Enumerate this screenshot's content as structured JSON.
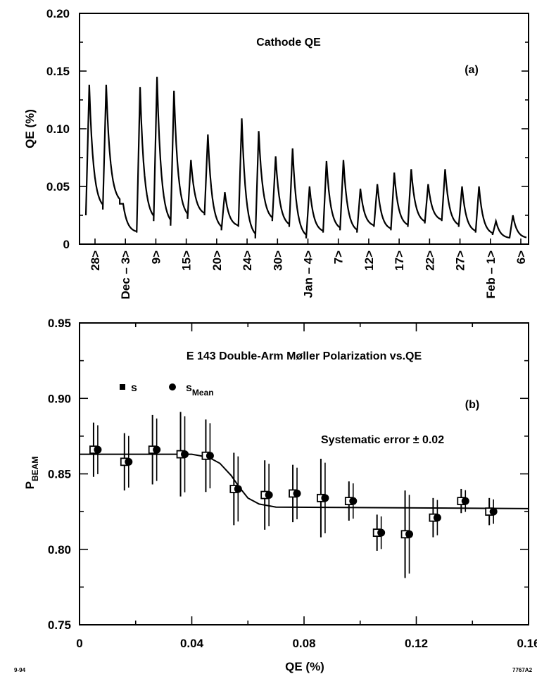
{
  "chart_data": [
    {
      "type": "line",
      "title": "Cathode QE",
      "panel_label": "(a)",
      "ylabel": "QE  (%)",
      "ylim": [
        0,
        0.2
      ],
      "yticks": [
        0,
        0.05,
        0.1,
        0.15,
        0.2
      ],
      "ytick_labels": [
        "0",
        "0.05",
        "0.10",
        "0.15",
        "0.20"
      ],
      "date_labels": [
        "28>",
        "Dec – 3>",
        "9>",
        "15>",
        "20>",
        "24>",
        "30>",
        "Jan – 4>",
        "7>",
        "12>",
        "17>",
        "22>",
        "27>",
        "Feb – 1>",
        "6>"
      ],
      "series": [
        {
          "values_by_cycle": [
            {
              "start": 0.025,
              "peak": 0.138,
              "end": 0.03
            },
            {
              "start": 0.03,
              "peak": 0.138,
              "end": 0.035
            },
            {
              "start": 0.035,
              "peak": 0.035,
              "end": 0.01
            },
            {
              "start": 0.01,
              "peak": 0.136,
              "end": 0.02
            },
            {
              "start": 0.02,
              "peak": 0.145,
              "end": 0.016
            },
            {
              "start": 0.016,
              "peak": 0.133,
              "end": 0.022
            },
            {
              "start": 0.022,
              "peak": 0.073,
              "end": 0.025
            },
            {
              "start": 0.025,
              "peak": 0.095,
              "end": 0.012
            },
            {
              "start": 0.012,
              "peak": 0.045,
              "end": 0.015
            },
            {
              "start": 0.015,
              "peak": 0.109,
              "end": 0.005
            },
            {
              "start": 0.005,
              "peak": 0.098,
              "end": 0.02
            },
            {
              "start": 0.02,
              "peak": 0.076,
              "end": 0.015
            },
            {
              "start": 0.015,
              "peak": 0.083,
              "end": 0.005
            },
            {
              "start": 0.005,
              "peak": 0.05,
              "end": 0.01
            },
            {
              "start": 0.01,
              "peak": 0.072,
              "end": 0.012
            },
            {
              "start": 0.012,
              "peak": 0.073,
              "end": 0.01
            },
            {
              "start": 0.01,
              "peak": 0.048,
              "end": 0.015
            },
            {
              "start": 0.015,
              "peak": 0.052,
              "end": 0.012
            },
            {
              "start": 0.012,
              "peak": 0.062,
              "end": 0.015
            },
            {
              "start": 0.015,
              "peak": 0.065,
              "end": 0.018
            },
            {
              "start": 0.018,
              "peak": 0.052,
              "end": 0.02
            },
            {
              "start": 0.02,
              "peak": 0.065,
              "end": 0.015
            },
            {
              "start": 0.015,
              "peak": 0.05,
              "end": 0.01
            },
            {
              "start": 0.01,
              "peak": 0.05,
              "end": 0.008
            },
            {
              "start": 0.008,
              "peak": 0.02,
              "end": 0.005
            },
            {
              "start": 0.005,
              "peak": 0.025,
              "end": 0.005
            }
          ]
        }
      ]
    },
    {
      "type": "scatter",
      "title": "E 143 Double-Arm Møller Polarization vs.QE",
      "panel_label": "(b)",
      "annotation": "Systematic error ± 0.02",
      "xlabel": "QE  (%)",
      "ylabel_main": "P",
      "ylabel_sub": "BEAM",
      "xlim": [
        0,
        0.16
      ],
      "ylim": [
        0.75,
        0.95
      ],
      "xticks": [
        0,
        0.04,
        0.08,
        0.12,
        0.16
      ],
      "xtick_labels": [
        "0",
        "0.04",
        "0.08",
        "0.12",
        "0.16"
      ],
      "yticks": [
        0.75,
        0.8,
        0.85,
        0.9,
        0.95
      ],
      "ytick_labels": [
        "0.75",
        "0.80",
        "0.85",
        "0.90",
        "0.95"
      ],
      "legend": [
        {
          "name_main": "s",
          "name_sub": "",
          "marker": "square"
        },
        {
          "name_main": "s",
          "name_sub": "Mean",
          "marker": "circle"
        }
      ],
      "series": [
        {
          "name": "s",
          "points": [
            {
              "x": 0.005,
              "y": 0.866,
              "err": 0.018
            },
            {
              "x": 0.016,
              "y": 0.858,
              "err": 0.019
            },
            {
              "x": 0.026,
              "y": 0.866,
              "err": 0.023
            },
            {
              "x": 0.036,
              "y": 0.863,
              "err": 0.028
            },
            {
              "x": 0.045,
              "y": 0.862,
              "err": 0.024
            },
            {
              "x": 0.055,
              "y": 0.84,
              "err": 0.024
            },
            {
              "x": 0.066,
              "y": 0.836,
              "err": 0.023
            },
            {
              "x": 0.076,
              "y": 0.837,
              "err": 0.019
            },
            {
              "x": 0.086,
              "y": 0.834,
              "err": 0.026
            },
            {
              "x": 0.096,
              "y": 0.832,
              "err": 0.013
            },
            {
              "x": 0.106,
              "y": 0.811,
              "err": 0.012
            },
            {
              "x": 0.116,
              "y": 0.81,
              "err": 0.029
            },
            {
              "x": 0.126,
              "y": 0.821,
              "err": 0.013
            },
            {
              "x": 0.136,
              "y": 0.832,
              "err": 0.008
            },
            {
              "x": 0.146,
              "y": 0.825,
              "err": 0.009
            }
          ]
        },
        {
          "name": "sMean",
          "points": [
            {
              "x": 0.0065,
              "y": 0.866
            },
            {
              "x": 0.0175,
              "y": 0.858
            },
            {
              "x": 0.0275,
              "y": 0.866
            },
            {
              "x": 0.0375,
              "y": 0.863
            },
            {
              "x": 0.0465,
              "y": 0.862
            },
            {
              "x": 0.0565,
              "y": 0.84
            },
            {
              "x": 0.0675,
              "y": 0.836
            },
            {
              "x": 0.0775,
              "y": 0.837
            },
            {
              "x": 0.0875,
              "y": 0.834
            },
            {
              "x": 0.0975,
              "y": 0.832
            },
            {
              "x": 0.1075,
              "y": 0.811
            },
            {
              "x": 0.1175,
              "y": 0.81
            },
            {
              "x": 0.1275,
              "y": 0.821
            },
            {
              "x": 0.1375,
              "y": 0.832
            },
            {
              "x": 0.1475,
              "y": 0.825
            }
          ]
        },
        {
          "name": "fit",
          "kind": "line",
          "points": [
            {
              "x": 0.0,
              "y": 0.863
            },
            {
              "x": 0.04,
              "y": 0.863
            },
            {
              "x": 0.046,
              "y": 0.861
            },
            {
              "x": 0.05,
              "y": 0.857
            },
            {
              "x": 0.054,
              "y": 0.849
            },
            {
              "x": 0.057,
              "y": 0.841
            },
            {
              "x": 0.06,
              "y": 0.834
            },
            {
              "x": 0.064,
              "y": 0.83
            },
            {
              "x": 0.07,
              "y": 0.828
            },
            {
              "x": 0.16,
              "y": 0.827
            }
          ]
        }
      ]
    }
  ],
  "footer": {
    "left_code": "9-94",
    "right_code": "7767A2"
  }
}
